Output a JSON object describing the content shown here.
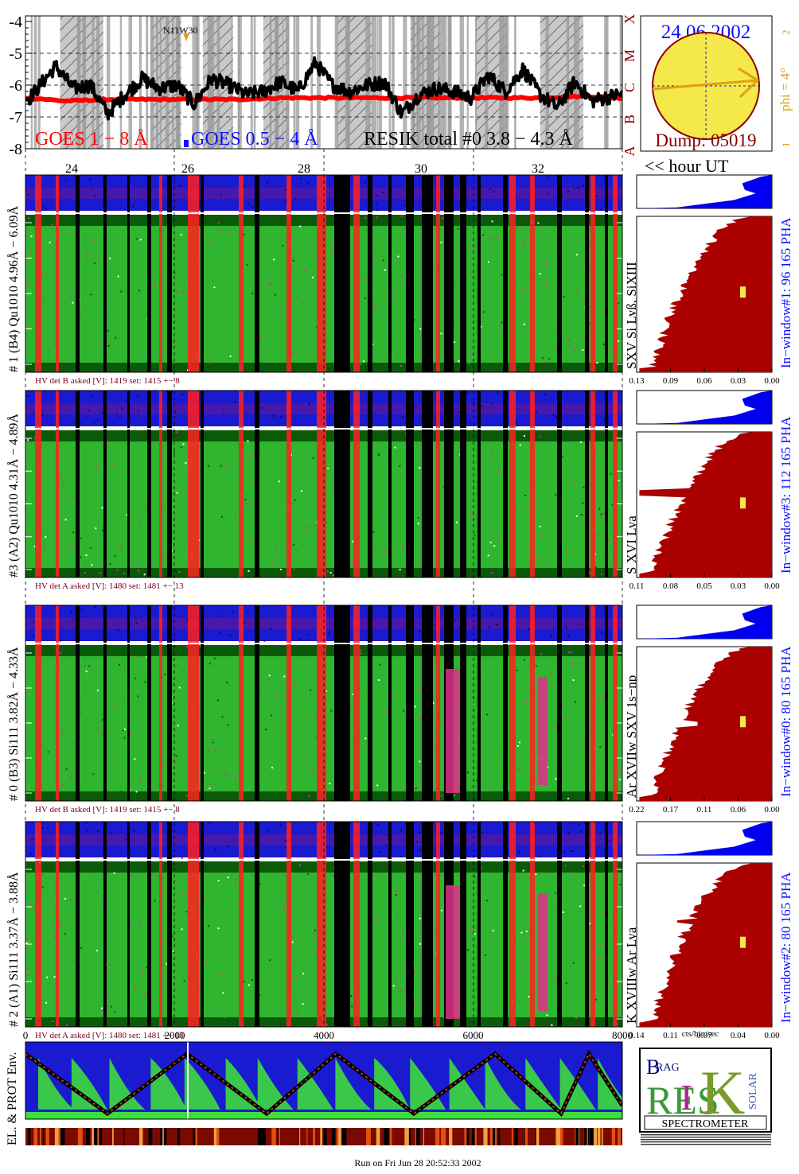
{
  "colors": {
    "goes_1_8": "#ff0000",
    "goes_05_4": "#1010ff",
    "resik": "#000000",
    "spectro_green": "#2fb52f",
    "spectro_dark_green": "#0a5a0a",
    "spectro_red": "#ff2020",
    "spectro_magenta": "#e0308a",
    "strip_blue": "#1a1ad0",
    "hist_red": "#aa0000",
    "hist_blue": "#0000ee",
    "sun_yellow": "#f5e84a",
    "sun_border": "#8b0000",
    "phi_orange": "#e0a010",
    "label_darkred": "#7a0020"
  },
  "goes_panel": {
    "y_ticks": [
      "-4",
      "-5",
      "-6",
      "-7",
      "-8"
    ],
    "class_letters": [
      "X",
      "M",
      "C",
      "B",
      "A"
    ],
    "legend_goes_1_8": "GOES 1 − 8 Å",
    "legend_goes_05_4": "GOES 0.5 − 4 Å",
    "legend_resik": "RESIK total #0  3.8 − 4.3 Å",
    "flare_label": "N11W30"
  },
  "sun_panel": {
    "date": "24 06 2002",
    "phi_text": "phi =  4°",
    "phi_top": "2",
    "phi_bottom": "1",
    "dump": "Dump: 05019"
  },
  "hour_axis": {
    "ticks": [
      "24",
      "26",
      "28",
      "30",
      "32"
    ],
    "label": "<< hour UT"
  },
  "detectors": [
    {
      "label": "# 1 (B4) Qu1010 4.96Å − 6.09Å",
      "lines": "SXV  Si Lyß, SiXIII",
      "window": "In−window#1:   96 165  PHA",
      "hv": "HV det B asked [V]:  1419 set:  1415  +−    8",
      "x_ticks": [
        "0.13",
        "0.09",
        "0.06",
        "0.03",
        "0.00"
      ]
    },
    {
      "label": "#3 (A2) Qu1010  4.31Å − 4.89Å",
      "lines": "S XVI Lya",
      "window": "In−window#3:   112 165  PHA",
      "hv": "HV det A asked [V]:  1480 set:  1481  +−   13",
      "x_ticks": [
        "0.11",
        "0.08",
        "0.05",
        "0.03",
        "0.00"
      ]
    },
    {
      "label": "# 0 (B3) Si111  3.82Å − 4.33Å",
      "lines": "Ar XVIIw  SXV 1s−np",
      "window": "In−window#0:   80 165  PHA",
      "hv": "HV det B asked [V]:  1419 set:  1415  +−    8",
      "x_ticks": [
        "0.22",
        "0.17",
        "0.11",
        "0.06",
        "0.00"
      ]
    },
    {
      "label": "# 2 (A1) Si111  3.37Å − 3.88Å",
      "lines": "K XVIIIw  Ar Lya",
      "window": "In−window#2:   80 165  PHA",
      "hv": "HV det A asked [V]:  1480 set:  1481  +−   13",
      "x_ticks": [
        "0.14",
        "0.11",
        "0.07",
        "0.04",
        "0.00"
      ]
    }
  ],
  "hist_axis_unit": "cts/bin/sec",
  "env_panel": {
    "label": "EL. & PROT Env.",
    "x_ticks": [
      "0",
      "2000",
      "4000",
      "6000",
      "8000"
    ]
  },
  "logo": {
    "spectrometer": "SPECTROMETER",
    "letters": [
      "B",
      "RAG",
      "RES",
      "I",
      "K",
      "SOLAR"
    ]
  },
  "footer": "Run on Fri Jun 28 20:52:33 2002",
  "chart_data": [
    {
      "type": "line",
      "ylabel": "",
      "ylim": [
        -8,
        -4
      ],
      "y_ticks": [
        -4,
        -5,
        -6,
        -7,
        -8
      ],
      "x_ticks_hours": [
        24,
        26,
        28,
        30,
        32
      ],
      "xlim_hours": [
        22.1,
        35.9
      ],
      "series": [
        {
          "name": "GOES 1 − 8 Å",
          "x": [
            22.2,
            23,
            24,
            25,
            26,
            27,
            28,
            29,
            30,
            31,
            32,
            33,
            34,
            35,
            35.8
          ],
          "values": [
            -6.4,
            -6.5,
            -6.45,
            -6.45,
            -6.45,
            -6.45,
            -6.4,
            -6.4,
            -6.4,
            -6.4,
            -6.4,
            -6.4,
            -6.4,
            -6.35,
            -6.4
          ]
        },
        {
          "name": "RESIK total #0  3.8 − 4.3 Å",
          "x": [
            22.2,
            22.8,
            23.2,
            23.6,
            24.0,
            24.4,
            24.8,
            25.2,
            25.6,
            26.0,
            26.4,
            26.8,
            27.2,
            27.6,
            28.0,
            28.4,
            28.8,
            29.2,
            29.6,
            30.0,
            30.4,
            30.8,
            31.2,
            31.6,
            32.0,
            32.4,
            32.8,
            33.2,
            33.6,
            34.0,
            34.4,
            34.8,
            35.2,
            35.8
          ],
          "values": [
            -6.4,
            -5.4,
            -6.1,
            -6.0,
            -6.9,
            -6.3,
            -5.8,
            -6.1,
            -6.0,
            -6.6,
            -5.8,
            -6.0,
            -6.3,
            -6.2,
            -5.9,
            -6.2,
            -5.3,
            -6.0,
            -6.2,
            -6.0,
            -5.9,
            -6.9,
            -6.3,
            -6.1,
            -6.2,
            -6.4,
            -5.7,
            -6.2,
            -5.5,
            -6.3,
            -6.7,
            -5.9,
            -6.5,
            -6.3
          ]
        }
      ]
    },
    {
      "type": "line",
      "xlim": [
        0,
        8000
      ],
      "x_ticks": [
        0,
        2000,
        4000,
        6000,
        8000
      ]
    }
  ]
}
